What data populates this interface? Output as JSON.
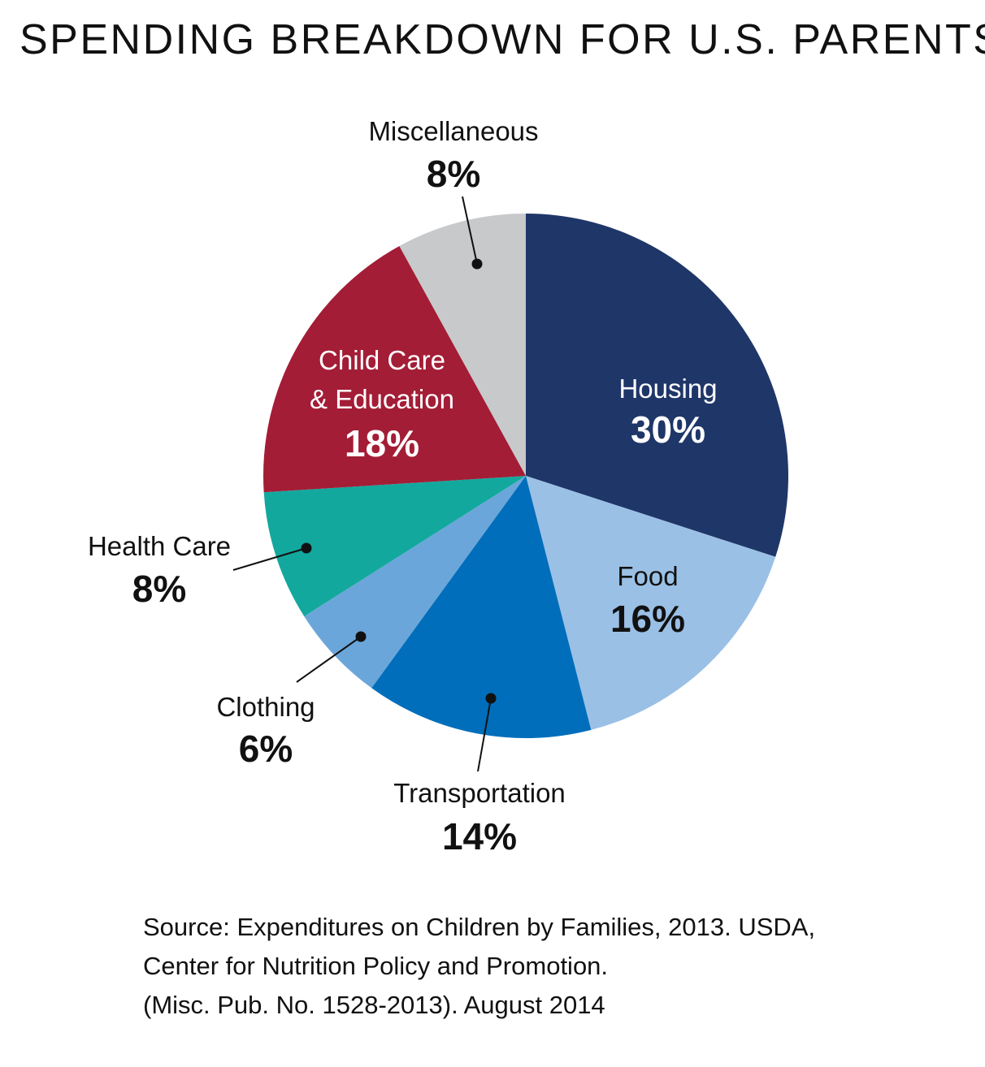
{
  "chart_data": {
    "type": "pie",
    "title": "SPENDING BREAKDOWN FOR U.S. PARENTS",
    "slices": [
      {
        "label": [
          "Housing"
        ],
        "value": 30,
        "value_label": "30%",
        "color": "#1f3668",
        "text_color": "#ffffff"
      },
      {
        "label": [
          "Food"
        ],
        "value": 16,
        "value_label": "16%",
        "color": "#9bc0e5",
        "text_color": "#111111"
      },
      {
        "label": [
          "Transportation"
        ],
        "value": 14,
        "value_label": "14%",
        "color": "#006ebb",
        "text_color": "#111111"
      },
      {
        "label": [
          "Clothing"
        ],
        "value": 6,
        "value_label": "6%",
        "color": "#6ba6da",
        "text_color": "#111111"
      },
      {
        "label": [
          "Health Care"
        ],
        "value": 8,
        "value_label": "8%",
        "color": "#13a89e",
        "text_color": "#111111"
      },
      {
        "label": [
          "Child Care",
          "& Education"
        ],
        "value": 18,
        "value_label": "18%",
        "color": "#a31d36",
        "text_color": "#ffffff"
      },
      {
        "label": [
          "Miscellaneous"
        ],
        "value": 8,
        "value_label": "8%",
        "color": "#c8c9cb",
        "text_color": "#111111"
      }
    ],
    "start": "12 o'clock",
    "direction": "clockwise"
  },
  "source": {
    "lines": [
      "Source: Expenditures on Children by Families, 2013. USDA,",
      "Center for Nutrition Policy and Promotion.",
      "(Misc. Pub. No. 1528-2013). August 2014"
    ]
  }
}
